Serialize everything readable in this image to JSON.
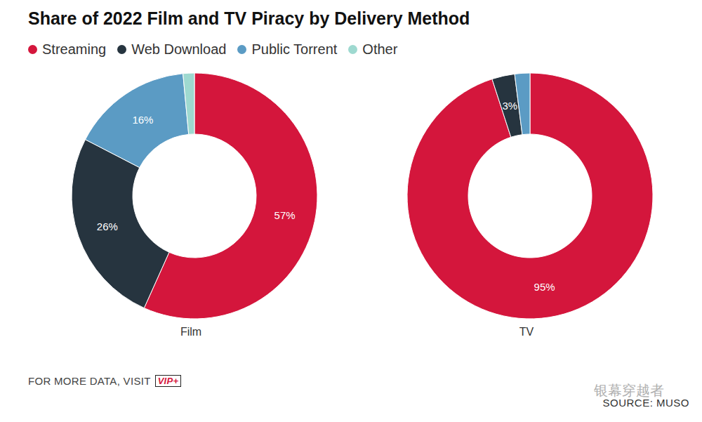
{
  "title": "Share of 2022 Film and TV Piracy by Delivery Method",
  "footer": "FOR MORE DATA, VISIT",
  "footer_badge": "VIP+",
  "source": "SOURCE: MUSO",
  "watermark": "银幕穿越者",
  "chart_data": [
    {
      "type": "pie",
      "title": "Film",
      "categories": [
        "Streaming",
        "Web Download",
        "Public Torrent",
        "Other"
      ],
      "values": [
        57,
        26,
        16,
        1.5
      ],
      "value_labels": [
        "57%",
        "26%",
        "16%",
        null
      ],
      "colors": [
        "#d4163c",
        "#26343f",
        "#5b9bc4",
        "#9ed9d0"
      ],
      "data_labels": true,
      "legend": "top"
    },
    {
      "type": "pie",
      "title": "TV",
      "categories": [
        "Streaming",
        "Web Download",
        "Public Torrent",
        "Other"
      ],
      "values": [
        95,
        3,
        2,
        0
      ],
      "value_labels": [
        "95%",
        "3%",
        null,
        null
      ],
      "colors": [
        "#d4163c",
        "#26343f",
        "#5b9bc4",
        "#9ed9d0"
      ],
      "data_labels": true,
      "legend": "top"
    }
  ]
}
